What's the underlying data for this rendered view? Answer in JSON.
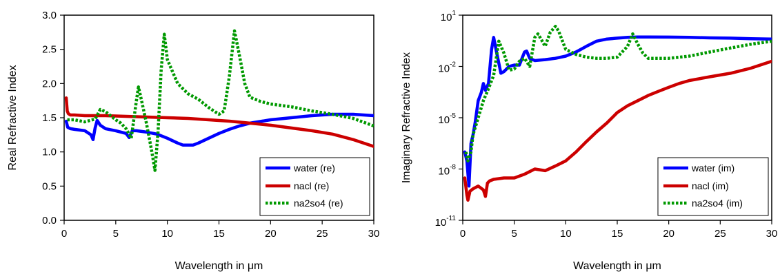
{
  "chart_data": [
    {
      "type": "line",
      "title": "",
      "xlabel": "Wavelength in μm",
      "ylabel": "Real Refractive Index",
      "xlim": [
        0,
        30
      ],
      "ylim": [
        0,
        3
      ],
      "yscale": "linear",
      "grid": false,
      "legend_position": "bottom-right",
      "x_ticks": [
        0,
        5,
        10,
        15,
        20,
        25,
        30
      ],
      "x_tick_labels": [
        "0",
        "5",
        "10",
        "15",
        "20",
        "25",
        "30"
      ],
      "y_ticks": [
        0,
        0.5,
        1,
        1.5,
        2,
        2.5,
        3
      ],
      "y_tick_labels": [
        "0.0",
        "0.5",
        "1.0",
        "1.5",
        "2.0",
        "2.5",
        "3.0"
      ],
      "series": [
        {
          "name": "water (re)",
          "color": "#0000ff",
          "style": "solid",
          "x": [
            0.2,
            0.35,
            0.6,
            1,
            2,
            2.6,
            2.8,
            3.0,
            3.2,
            3.5,
            4,
            5,
            6,
            6.3,
            6.6,
            7,
            8,
            9,
            10,
            11,
            11.5,
            12,
            12.5,
            13,
            14,
            15,
            16,
            17,
            18,
            20,
            22,
            24,
            26,
            28,
            30
          ],
          "y": [
            1.45,
            1.36,
            1.34,
            1.33,
            1.31,
            1.25,
            1.18,
            1.35,
            1.46,
            1.39,
            1.34,
            1.31,
            1.27,
            1.21,
            1.31,
            1.31,
            1.29,
            1.26,
            1.2,
            1.13,
            1.1,
            1.1,
            1.1,
            1.13,
            1.2,
            1.27,
            1.33,
            1.38,
            1.42,
            1.47,
            1.5,
            1.53,
            1.55,
            1.55,
            1.53
          ]
        },
        {
          "name": "nacl (re)",
          "color": "#cc0000",
          "style": "solid",
          "x": [
            0.2,
            0.3,
            0.4,
            0.6,
            1,
            2,
            4,
            6,
            8,
            10,
            12,
            14,
            16,
            18,
            20,
            22,
            24,
            26,
            28,
            30
          ],
          "y": [
            1.79,
            1.6,
            1.56,
            1.54,
            1.54,
            1.53,
            1.53,
            1.52,
            1.51,
            1.5,
            1.49,
            1.47,
            1.45,
            1.42,
            1.39,
            1.35,
            1.31,
            1.26,
            1.18,
            1.08
          ]
        },
        {
          "name": "na2so4 (re)",
          "color": "#009900",
          "style": "dotted",
          "x": [
            0.3,
            1,
            2,
            3,
            3.5,
            4,
            5,
            5.5,
            6,
            6.5,
            7,
            7.2,
            7.5,
            8,
            8.5,
            8.8,
            9.1,
            9.4,
            9.7,
            10,
            11,
            12,
            13,
            14,
            15,
            15.5,
            16,
            16.5,
            17,
            17.5,
            18,
            19,
            20,
            22,
            24,
            26,
            28,
            30
          ],
          "y": [
            1.47,
            1.47,
            1.44,
            1.48,
            1.62,
            1.59,
            1.47,
            1.42,
            1.34,
            1.2,
            1.75,
            1.95,
            1.75,
            1.4,
            1.0,
            0.73,
            1.3,
            2.2,
            2.72,
            2.35,
            2.0,
            1.85,
            1.77,
            1.65,
            1.55,
            1.6,
            2.1,
            2.77,
            2.4,
            2.0,
            1.8,
            1.74,
            1.7,
            1.66,
            1.6,
            1.55,
            1.49,
            1.38
          ]
        }
      ]
    },
    {
      "type": "line",
      "title": "",
      "xlabel": "Wavelength in μm",
      "ylabel": "Imaginary Refractive Index",
      "xlim": [
        0,
        30
      ],
      "ylim": [
        1e-11,
        10
      ],
      "yscale": "log",
      "grid": false,
      "legend_position": "bottom-right",
      "x_ticks": [
        0,
        5,
        10,
        15,
        20,
        25,
        30
      ],
      "x_tick_labels": [
        "0",
        "5",
        "10",
        "15",
        "20",
        "25",
        "30"
      ],
      "y_ticks": [
        -11,
        -8,
        -5,
        -2,
        1
      ],
      "y_tick_labels": [
        {
          "base": "10",
          "exp": "-11"
        },
        {
          "base": "10",
          "exp": "-8"
        },
        {
          "base": "10",
          "exp": "-5"
        },
        {
          "base": "10",
          "exp": "-2"
        },
        {
          "base": "10",
          "exp": "1"
        }
      ],
      "series": [
        {
          "name": "water (im)",
          "color": "#0000ff",
          "style": "solid",
          "x": [
            0.2,
            0.4,
            0.6,
            0.8,
            1.0,
            1.2,
            1.5,
            1.8,
            2.0,
            2.2,
            2.5,
            2.8,
            3.0,
            3.3,
            3.7,
            4.0,
            4.5,
            5.0,
            5.5,
            6.0,
            6.2,
            6.5,
            7,
            8,
            9,
            10,
            11,
            12,
            13,
            14,
            15,
            16,
            17,
            18,
            20,
            22,
            24,
            26,
            28,
            30
          ],
          "y": [
            1e-07,
            3e-08,
            1e-09,
            3e-07,
            1e-06,
            5e-06,
            0.0001,
            0.0003,
            0.001,
            0.0004,
            0.001,
            0.1,
            0.5,
            0.06,
            0.004,
            0.005,
            0.01,
            0.012,
            0.012,
            0.07,
            0.08,
            0.03,
            0.022,
            0.025,
            0.03,
            0.04,
            0.07,
            0.15,
            0.3,
            0.4,
            0.45,
            0.5,
            0.53,
            0.53,
            0.52,
            0.5,
            0.47,
            0.45,
            0.42,
            0.4
          ]
        },
        {
          "name": "nacl (im)",
          "color": "#cc0000",
          "style": "solid",
          "x": [
            0.2,
            0.4,
            0.5,
            0.7,
            1.0,
            1.5,
            2.0,
            2.2,
            2.4,
            2.6,
            3,
            4,
            5,
            6,
            7,
            8,
            9,
            10,
            11,
            12,
            13,
            14,
            15,
            16,
            17,
            18,
            19,
            20,
            21,
            22,
            24,
            26,
            28,
            30
          ],
          "y": [
            3e-09,
            3e-10,
            1.5e-10,
            5e-10,
            7e-10,
            1e-09,
            6e-10,
            2.5e-10,
            1.5e-09,
            2e-09,
            2.5e-09,
            3e-09,
            3e-09,
            5e-09,
            1e-08,
            8e-09,
            1.5e-08,
            3e-08,
            1e-07,
            4e-07,
            1.5e-06,
            5e-06,
            2e-05,
            5e-05,
            0.0001,
            0.0002,
            0.00035,
            0.0006,
            0.001,
            0.0015,
            0.0025,
            0.004,
            0.008,
            0.02
          ]
        },
        {
          "name": "na2so4 (im)",
          "color": "#009900",
          "style": "dotted",
          "x": [
            0.3,
            0.5,
            0.8,
            1,
            1.5,
            2,
            2.5,
            3,
            3.5,
            4,
            4.5,
            5,
            5.5,
            6,
            6.5,
            7,
            7.3,
            7.6,
            8,
            8.5,
            9,
            9.3,
            9.6,
            10,
            11,
            12,
            13,
            14,
            15,
            16,
            16.5,
            17,
            17.5,
            18,
            20,
            22,
            24,
            26,
            28,
            30
          ],
          "y": [
            1e-07,
            3e-08,
            1e-07,
            1e-06,
            1e-05,
            0.0001,
            0.0005,
            0.003,
            0.3,
            0.06,
            0.006,
            0.007,
            0.02,
            0.03,
            0.01,
            0.5,
            0.8,
            0.4,
            0.15,
            1.0,
            2.2,
            1.2,
            0.4,
            0.1,
            0.05,
            0.035,
            0.03,
            0.03,
            0.035,
            0.15,
            0.8,
            0.2,
            0.06,
            0.03,
            0.03,
            0.04,
            0.07,
            0.12,
            0.2,
            0.3
          ]
        }
      ]
    }
  ]
}
